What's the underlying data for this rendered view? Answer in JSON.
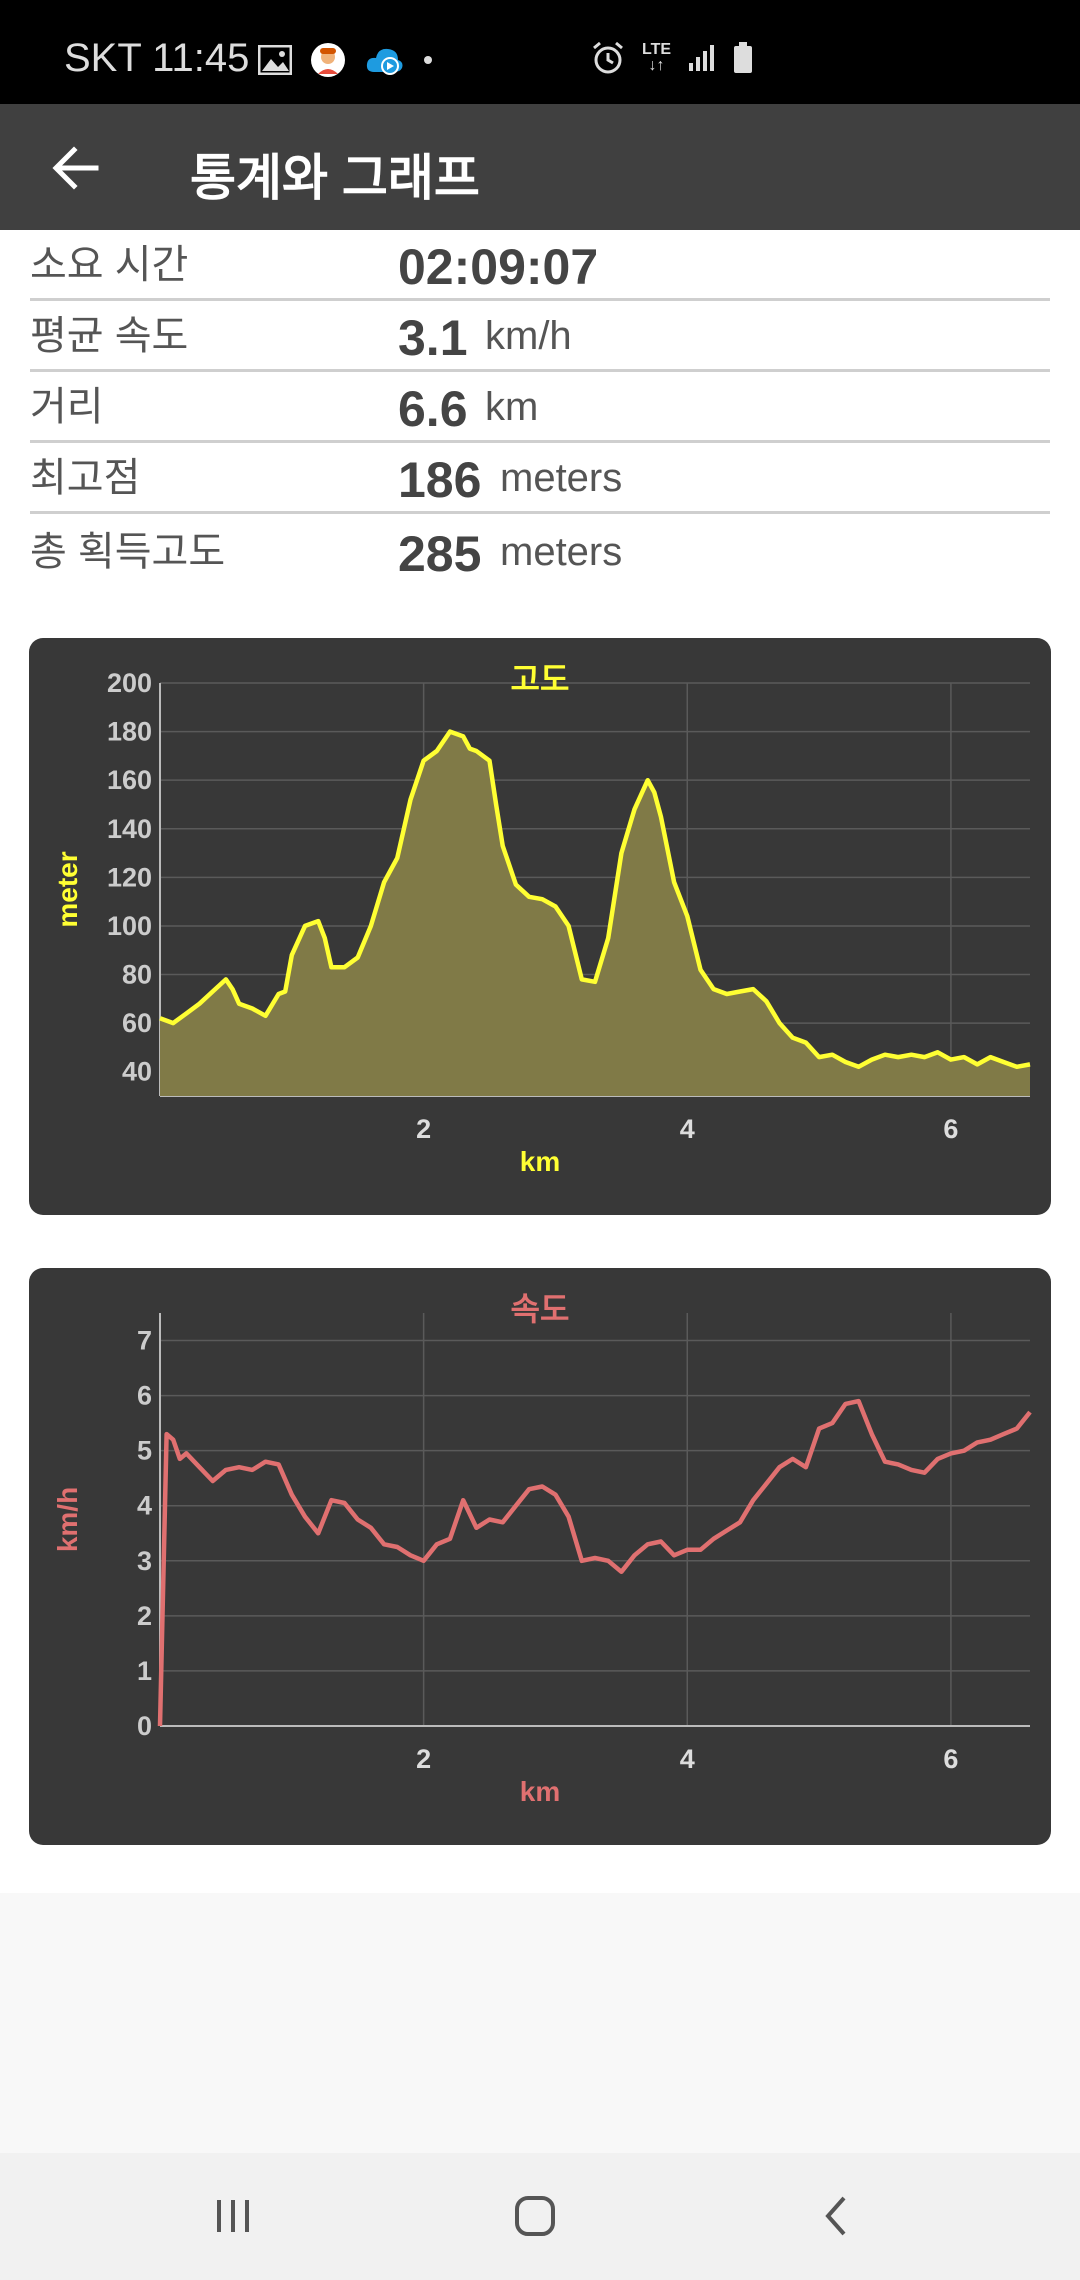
{
  "status_bar": {
    "carrier_time": "SKT 11:45",
    "network": "LTE",
    "icons": [
      "image-icon",
      "avatar-icon",
      "cloud-play-icon",
      "dot-icon",
      "alarm-icon",
      "lte-icon",
      "signal-icon",
      "battery-icon"
    ]
  },
  "app_bar": {
    "title": "통계와 그래프",
    "back_icon": "arrow-left-icon"
  },
  "stats": [
    {
      "label": "소요 시간",
      "value": "02:09:07",
      "unit": ""
    },
    {
      "label": "평균 속도",
      "value": "3.1",
      "unit": "km/h"
    },
    {
      "label": "거리",
      "value": "6.6",
      "unit": "km"
    },
    {
      "label": "최고점",
      "value": "186",
      "unit": "meters"
    },
    {
      "label": "총 획득고도",
      "value": "285",
      "unit": "meters"
    }
  ],
  "chart_data": [
    {
      "type": "area",
      "title": "고도",
      "xlabel": "km",
      "ylabel": "meter",
      "xlim": [
        0,
        6.6
      ],
      "ylim": [
        30,
        200
      ],
      "xticks": [
        2,
        4,
        6
      ],
      "yticks": [
        40,
        60,
        80,
        100,
        120,
        140,
        160,
        180,
        200
      ],
      "grid": true,
      "color": "#ffff33",
      "x": [
        0,
        0.1,
        0.2,
        0.3,
        0.4,
        0.5,
        0.55,
        0.6,
        0.7,
        0.8,
        0.9,
        0.95,
        1.0,
        1.1,
        1.2,
        1.25,
        1.3,
        1.4,
        1.5,
        1.6,
        1.7,
        1.8,
        1.9,
        2.0,
        2.1,
        2.2,
        2.3,
        2.35,
        2.4,
        2.5,
        2.55,
        2.6,
        2.7,
        2.8,
        2.9,
        3.0,
        3.1,
        3.2,
        3.3,
        3.4,
        3.5,
        3.6,
        3.7,
        3.75,
        3.8,
        3.9,
        4.0,
        4.1,
        4.2,
        4.3,
        4.4,
        4.5,
        4.6,
        4.7,
        4.8,
        4.9,
        5.0,
        5.1,
        5.2,
        5.3,
        5.4,
        5.5,
        5.6,
        5.7,
        5.8,
        5.9,
        6.0,
        6.1,
        6.2,
        6.3,
        6.4,
        6.5,
        6.6
      ],
      "values": [
        62,
        60,
        64,
        68,
        73,
        78,
        74,
        68,
        66,
        63,
        72,
        73,
        88,
        100,
        102,
        95,
        83,
        83,
        87,
        100,
        118,
        128,
        152,
        168,
        172,
        180,
        178,
        173,
        172,
        168,
        150,
        133,
        117,
        112,
        111,
        108,
        100,
        78,
        77,
        95,
        130,
        148,
        160,
        155,
        145,
        118,
        104,
        82,
        74,
        72,
        73,
        74,
        69,
        60,
        54,
        52,
        46,
        47,
        44,
        42,
        45,
        47,
        46,
        47,
        46,
        48,
        45,
        46,
        43,
        46,
        44,
        42,
        43
      ]
    },
    {
      "type": "line",
      "title": "속도",
      "xlabel": "km",
      "ylabel": "km/h",
      "xlim": [
        0,
        6.6
      ],
      "ylim": [
        0,
        7.5
      ],
      "xticks": [
        2,
        4,
        6
      ],
      "yticks": [
        0,
        1,
        2,
        3,
        4,
        5,
        6,
        7
      ],
      "grid": true,
      "color": "#e07070",
      "x": [
        0,
        0.05,
        0.1,
        0.15,
        0.2,
        0.3,
        0.4,
        0.5,
        0.6,
        0.7,
        0.8,
        0.9,
        1.0,
        1.1,
        1.2,
        1.3,
        1.4,
        1.5,
        1.6,
        1.7,
        1.8,
        1.9,
        2.0,
        2.1,
        2.2,
        2.3,
        2.4,
        2.5,
        2.6,
        2.7,
        2.8,
        2.9,
        3.0,
        3.1,
        3.2,
        3.3,
        3.4,
        3.5,
        3.6,
        3.7,
        3.8,
        3.9,
        4.0,
        4.1,
        4.2,
        4.3,
        4.4,
        4.5,
        4.6,
        4.7,
        4.8,
        4.9,
        5.0,
        5.1,
        5.2,
        5.3,
        5.4,
        5.5,
        5.6,
        5.7,
        5.8,
        5.9,
        6.0,
        6.1,
        6.2,
        6.3,
        6.4,
        6.5,
        6.6
      ],
      "values": [
        0,
        5.3,
        5.2,
        4.85,
        4.95,
        4.7,
        4.45,
        4.65,
        4.7,
        4.65,
        4.8,
        4.75,
        4.2,
        3.8,
        3.5,
        4.1,
        4.05,
        3.75,
        3.6,
        3.3,
        3.25,
        3.1,
        3.0,
        3.3,
        3.4,
        4.1,
        3.6,
        3.75,
        3.7,
        4.0,
        4.3,
        4.35,
        4.2,
        3.8,
        3.0,
        3.05,
        3.0,
        2.8,
        3.1,
        3.3,
        3.35,
        3.1,
        3.2,
        3.2,
        3.4,
        3.55,
        3.7,
        4.1,
        4.4,
        4.7,
        4.85,
        4.7,
        5.4,
        5.5,
        5.85,
        5.9,
        5.3,
        4.8,
        4.75,
        4.65,
        4.6,
        4.85,
        4.95,
        5.0,
        5.15,
        5.2,
        5.3,
        5.4,
        5.7
      ]
    }
  ],
  "nav_bar": {
    "icons": [
      "recent-apps-icon",
      "home-icon",
      "back-icon"
    ]
  }
}
